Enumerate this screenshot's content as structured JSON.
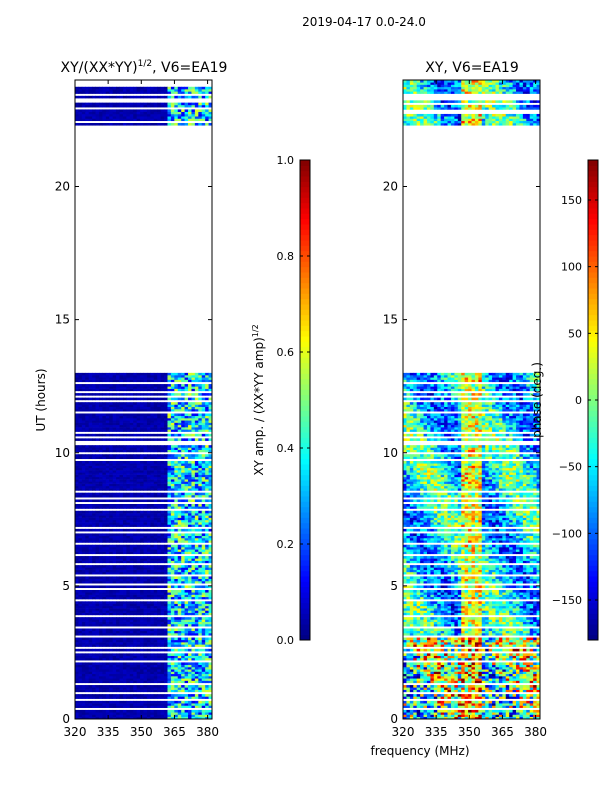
{
  "figure": {
    "suptitle": "2019-04-17 0.0-24.0",
    "xlabel": "frequency (MHz)",
    "ylabel": "UT (hours)"
  },
  "colors": {
    "low": "#00008f",
    "gap": "#ffffff",
    "jet": [
      "#00007f",
      "#0000ff",
      "#007fff",
      "#00ffff",
      "#7fff7f",
      "#ffff00",
      "#ff7f00",
      "#ff0000",
      "#7f0000"
    ]
  },
  "chart_data": [
    {
      "type": "heatmap",
      "title": "XY/(XX*YY)^1/2, V6=EA19",
      "title_main": "XY/(XX*YY)",
      "title_sup": "1/2",
      "title_rest": ", V6=EA19",
      "x_range": [
        320,
        382
      ],
      "y_range": [
        0,
        24
      ],
      "x_ticks": [
        320,
        335,
        350,
        365,
        380
      ],
      "y_ticks": [
        0,
        5,
        10,
        15,
        20
      ],
      "data_blocks_ut": [
        [
          0.0,
          13.0
        ],
        [
          22.3,
          24.0
        ]
      ],
      "colorbar": {
        "label": "XY amp. / (XX*YY amp)",
        "label_sup": "1/2",
        "range": [
          0.0,
          1.0
        ],
        "ticks": [
          "0.0",
          "0.2",
          "0.4",
          "0.6",
          "0.8",
          "1.0"
        ]
      }
    },
    {
      "type": "heatmap",
      "title": "XY, V6=EA19",
      "x_range": [
        320,
        382
      ],
      "y_range": [
        0,
        24
      ],
      "x_ticks": [
        320,
        335,
        350,
        365,
        380
      ],
      "y_ticks": [
        0,
        5,
        10,
        15,
        20
      ],
      "data_blocks_ut": [
        [
          0.0,
          13.0
        ],
        [
          22.3,
          24.0
        ]
      ],
      "colorbar": {
        "label": "phase (deg.)",
        "range": [
          -180,
          180
        ],
        "ticks": [
          "−150",
          "−100",
          "−50",
          "0",
          "50",
          "100",
          "150"
        ]
      }
    }
  ]
}
